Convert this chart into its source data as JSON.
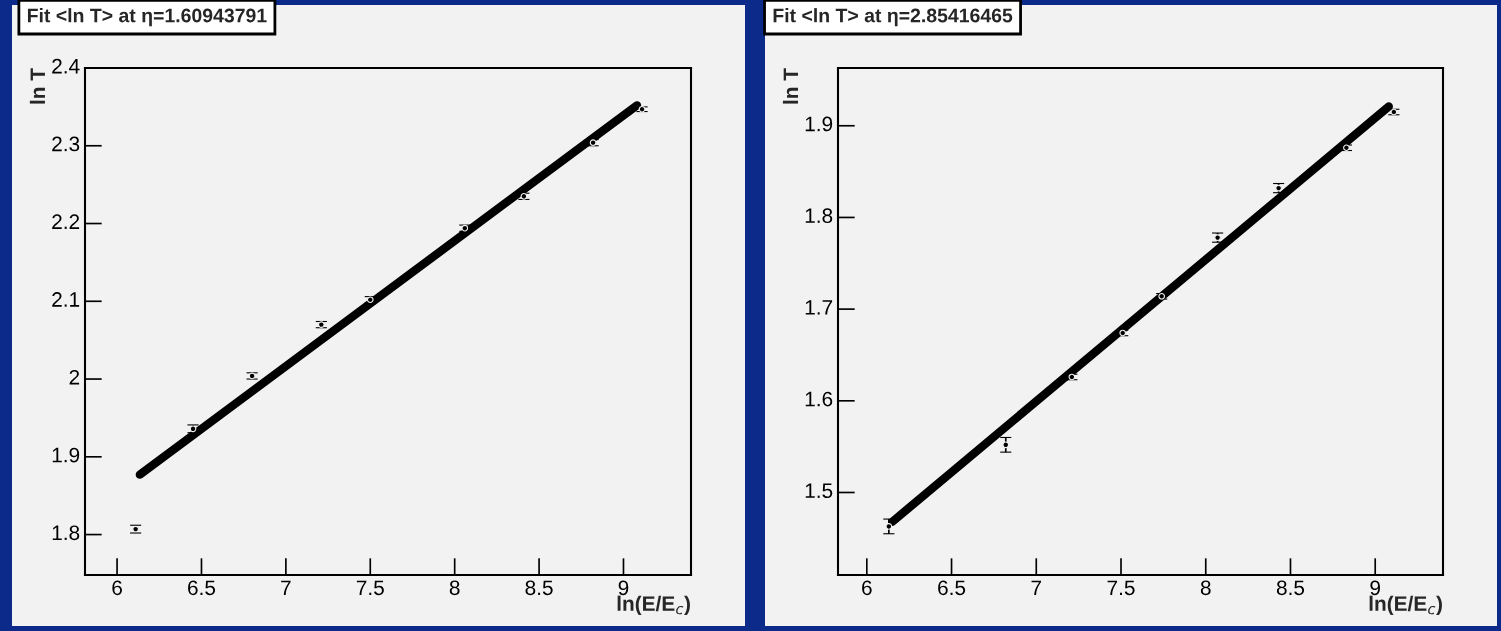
{
  "chart_data": [
    {
      "type": "scatter",
      "title": "Fit <ln T> at η=1.60943791",
      "xlabel": "ln(E/E$_{c}$)",
      "ylabel": "ln T",
      "xlim": [
        5.81,
        9.4
      ],
      "ylim": [
        1.748,
        2.4
      ],
      "xticks": [
        6,
        6.5,
        7,
        7.5,
        8,
        8.5,
        9
      ],
      "yticks": [
        1.8,
        1.9,
        2,
        2.1,
        2.2,
        2.3,
        2.4
      ],
      "grid": false,
      "series": [
        {
          "color": "#000000",
          "marker": "circle",
          "x": [
            6.11,
            6.45,
            6.8,
            7.21,
            7.5,
            8.06,
            8.41,
            8.82,
            9.11
          ],
          "values": [
            1.807,
            1.936,
            2.004,
            2.07,
            2.102,
            2.194,
            2.235,
            2.304,
            2.347
          ],
          "errors": [
            0.005,
            0.005,
            0.004,
            0.004,
            0.004,
            0.004,
            0.004,
            0.004,
            0.003
          ]
        },
        {
          "type": "line",
          "color": "#000000",
          "x": [
            6.135,
            9.08
          ],
          "values": [
            1.877,
            2.352
          ]
        }
      ]
    },
    {
      "type": "scatter",
      "title": "Fit <ln T> at η=2.85416465",
      "xlabel": "ln(E/E$_{c}$)",
      "ylabel": "ln T",
      "xlim": [
        5.83,
        9.4
      ],
      "ylim": [
        1.41,
        1.963
      ],
      "xticks": [
        6,
        6.5,
        7,
        7.5,
        8,
        8.5,
        9
      ],
      "yticks": [
        1.5,
        1.6,
        1.7,
        1.8,
        1.9
      ],
      "grid": false,
      "series": [
        {
          "color": "#000000",
          "marker": "circle",
          "x": [
            6.13,
            6.82,
            7.21,
            7.51,
            7.74,
            8.07,
            8.43,
            8.83,
            9.11
          ],
          "values": [
            1.463,
            1.552,
            1.626,
            1.674,
            1.714,
            1.778,
            1.832,
            1.876,
            1.915
          ],
          "errors": [
            0.008,
            0.008,
            0.003,
            0.003,
            0.003,
            0.005,
            0.005,
            0.003,
            0.003
          ]
        },
        {
          "type": "line",
          "color": "#000000",
          "x": [
            6.15,
            9.08
          ],
          "values": [
            1.468,
            1.921
          ]
        }
      ]
    }
  ]
}
